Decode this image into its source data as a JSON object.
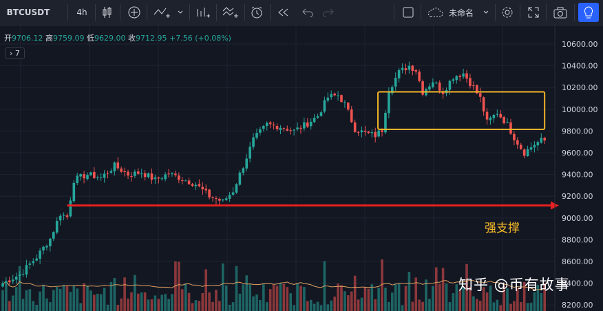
{
  "toolbar": {
    "symbol": "BTCUSDT",
    "interval": "4h",
    "layout_name": "未命名"
  },
  "legend": {
    "open_label": "开",
    "open": "9706.12",
    "high_label": "高",
    "high": "9759.09",
    "low_label": "低",
    "low": "9629.00",
    "close_label": "收",
    "close": "9712.95",
    "change": "+7.56 (+0.08%)"
  },
  "study_toggle": "7",
  "annotation": "强支撑",
  "watermark": "知乎 @币有故事",
  "colors": {
    "up": "#26a69a",
    "down": "#ef5350",
    "support_line": "#e82020",
    "box": "#f0b429",
    "ma": "#e0a060"
  },
  "icons": [
    "candle-style-icon",
    "add-indicator-icon",
    "drawing-icon",
    "bar-chart-icon",
    "compare-icon",
    "alert-icon",
    "replay-icon",
    "undo-icon",
    "redo-icon",
    "layout-square-icon",
    "cloud-icon",
    "chevron-down-icon",
    "settings-gear-icon",
    "fullscreen-icon",
    "camera-icon",
    "lightbulb-icon"
  ],
  "chart_data": {
    "type": "candlestick",
    "symbol": "BTCUSDT",
    "interval": "4h",
    "ylim": [
      8150,
      10700
    ],
    "y_ticks": [
      "10600.00",
      "10400.00",
      "10200.00",
      "10000.00",
      "9800.00",
      "9600.00",
      "9400.00",
      "9200.00",
      "9000.00",
      "8800.00",
      "8600.00",
      "8400.00",
      "8200.00"
    ],
    "anchors": [
      [
        0,
        8400
      ],
      [
        5,
        8480
      ],
      [
        10,
        8640
      ],
      [
        14,
        8810
      ],
      [
        17,
        9040
      ],
      [
        19,
        9010
      ],
      [
        21,
        9350
      ],
      [
        25,
        9400
      ],
      [
        29,
        9370
      ],
      [
        33,
        9480
      ],
      [
        37,
        9400
      ],
      [
        41,
        9420
      ],
      [
        45,
        9350
      ],
      [
        49,
        9410
      ],
      [
        53,
        9360
      ],
      [
        57,
        9310
      ],
      [
        61,
        9200
      ],
      [
        65,
        9150
      ],
      [
        68,
        9250
      ],
      [
        71,
        9480
      ],
      [
        74,
        9720
      ],
      [
        78,
        9860
      ],
      [
        82,
        9840
      ],
      [
        86,
        9800
      ],
      [
        90,
        9870
      ],
      [
        93,
        9940
      ],
      [
        96,
        10110
      ],
      [
        99,
        10130
      ],
      [
        101,
        10050
      ],
      [
        104,
        9820
      ],
      [
        107,
        9780
      ],
      [
        110,
        9760
      ],
      [
        112,
        9810
      ],
      [
        114,
        10180
      ],
      [
        117,
        10340
      ],
      [
        120,
        10400
      ],
      [
        122,
        10360
      ],
      [
        124,
        10160
      ],
      [
        127,
        10260
      ],
      [
        130,
        10160
      ],
      [
        133,
        10300
      ],
      [
        136,
        10330
      ],
      [
        139,
        10200
      ],
      [
        141,
        10100
      ],
      [
        143,
        9880
      ],
      [
        146,
        9970
      ],
      [
        149,
        9860
      ],
      [
        151,
        9740
      ],
      [
        154,
        9600
      ],
      [
        157,
        9680
      ],
      [
        159,
        9713
      ]
    ],
    "volume_ma": "orange line",
    "support_line": 9115,
    "support_label": "强支撑",
    "box": {
      "y_top": 10160,
      "y_bottom": 9815,
      "start_index": 112,
      "end_index": 160
    }
  }
}
